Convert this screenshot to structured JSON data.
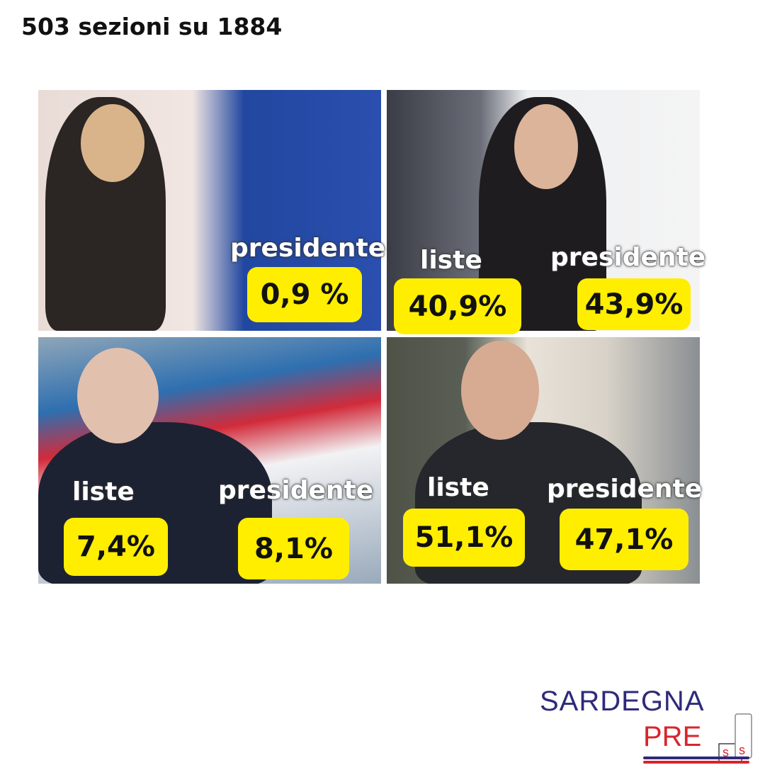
{
  "title": "503 sezioni su 1884",
  "panels": [
    {
      "presidente_label": "presidente",
      "presidente_value": "0,9 %"
    },
    {
      "liste_label": "liste",
      "liste_value": "40,9%",
      "presidente_label": "presidente",
      "presidente_value": "43,9%"
    },
    {
      "liste_label": "liste",
      "liste_value": "7,4%",
      "presidente_label": "presidente",
      "presidente_value": "8,1%"
    },
    {
      "liste_label": "liste",
      "liste_value": "51,1%",
      "presidente_label": "presidente",
      "presidente_value": "47,1%"
    }
  ],
  "logo": {
    "line1": "SARDEGNA",
    "line2": "PRE",
    "line2_end": "SS"
  },
  "colors": {
    "highlight": "#ffee00",
    "logo_blue": "#2e2a7a",
    "logo_red": "#d9252b"
  }
}
